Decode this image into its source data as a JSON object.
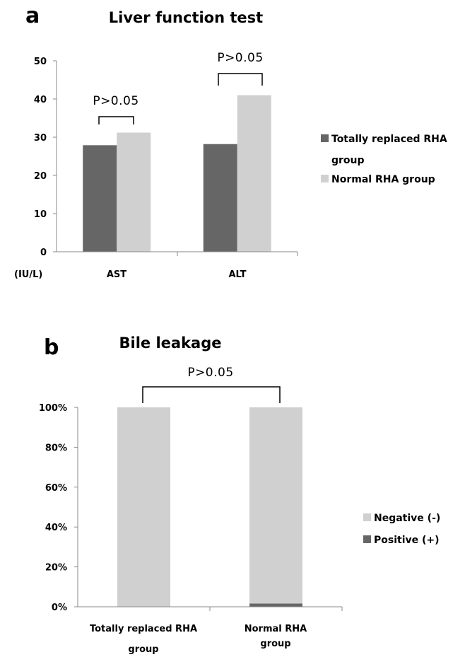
{
  "colors": {
    "dark": "#666666",
    "light": "#d0d0d0"
  },
  "chart_data": [
    {
      "type": "bar",
      "panel_label": "a",
      "title": "Liver function test",
      "unit_label": "(IU/L)",
      "categories": [
        "AST",
        "ALT"
      ],
      "series": [
        {
          "name": "Totally replaced RHA group",
          "values": [
            27.9,
            28.2
          ],
          "color": "#666666"
        },
        {
          "name": "Normal RHA group",
          "values": [
            31.2,
            41.0
          ],
          "color": "#d0d0d0"
        }
      ],
      "ylim": [
        0,
        50
      ],
      "yticks": [
        "0",
        "10",
        "20",
        "30",
        "40",
        "50"
      ],
      "annotations": [
        "P>0.05",
        "P>0.05"
      ],
      "legend_lines": [
        [
          "Totally replaced RHA",
          "group"
        ],
        [
          "Normal RHA group"
        ]
      ],
      "legend_position": "right",
      "grid": false
    },
    {
      "type": "bar",
      "stacked": true,
      "panel_label": "b",
      "title": "Bile leakage",
      "category_lines": [
        [
          "Totally replaced RHA",
          "group"
        ],
        [
          "Normal RHA",
          "group"
        ]
      ],
      "series": [
        {
          "name": "Positive (+)",
          "values": [
            0,
            1.6
          ],
          "color": "#666666"
        },
        {
          "name": "Negative (-)",
          "values": [
            100,
            98.4
          ],
          "color": "#d0d0d0"
        }
      ],
      "ylim": [
        0,
        100
      ],
      "yticks": [
        "0%",
        "20%",
        "40%",
        "60%",
        "80%",
        "100%"
      ],
      "annotation": "P>0.05",
      "legend": [
        "Negative (-)",
        "Positive (+)"
      ],
      "legend_position": "right",
      "grid": false
    }
  ]
}
